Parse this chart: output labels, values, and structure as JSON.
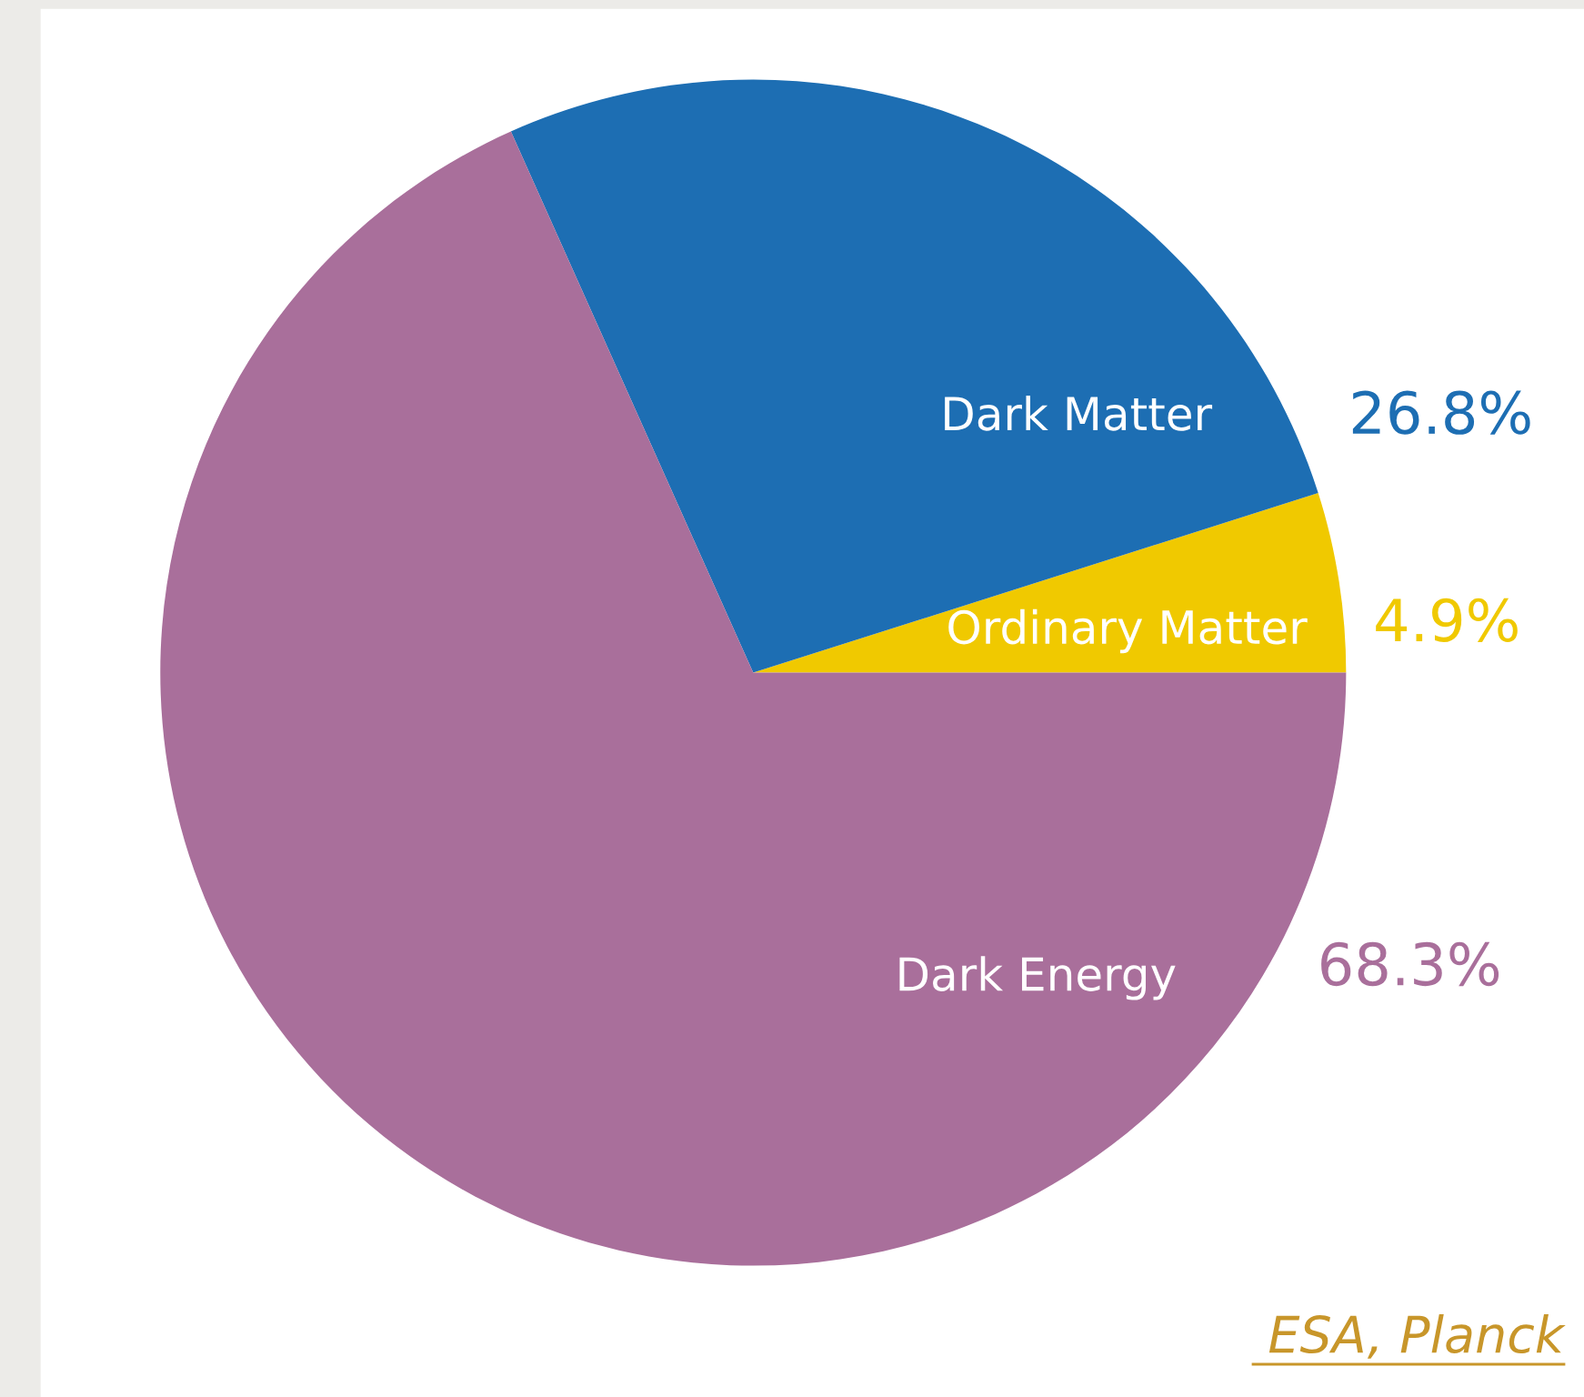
{
  "chart_data": {
    "type": "pie",
    "categories": [
      "Ordinary Matter",
      "Dark Matter",
      "Dark Energy"
    ],
    "values": [
      4.9,
      26.8,
      68.3
    ],
    "colors": [
      "#f0c900",
      "#1d6eb3",
      "#a96f9b"
    ],
    "value_labels": [
      "4.9%",
      "26.8%",
      "68.3%"
    ],
    "legend": false,
    "annotations": [
      "ESA, Planck"
    ]
  }
}
